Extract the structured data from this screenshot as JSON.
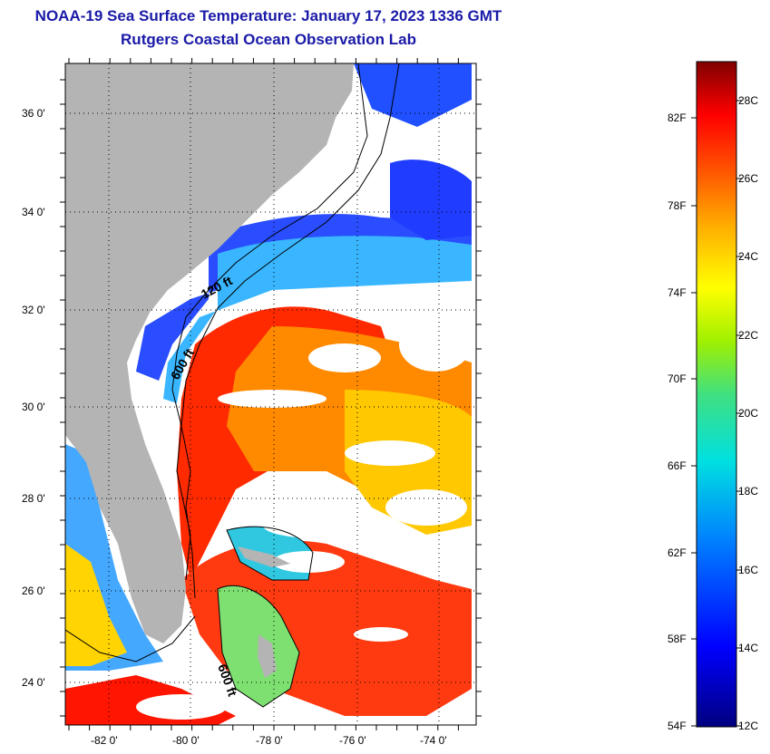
{
  "header": {
    "title": "NOAA-19 Sea Surface Temperature:  January 17, 2023 1336 GMT",
    "subtitle": "Rutgers Coastal Ocean Observation Lab"
  },
  "map": {
    "lat_range": [
      23,
      37.1
    ],
    "lon_range": [
      -83,
      -73
    ],
    "lat_labels": [
      "36 0'",
      "34 0'",
      "32 0'",
      "30 0'",
      "28 0'",
      "26 0'",
      "24 0'"
    ],
    "lon_labels": [
      "-82 0'",
      "-80 0'",
      "-78 0'",
      "-76 0'",
      "-74 0'"
    ],
    "contour_labels": [
      "120 ft",
      "600 ft",
      "600 ft"
    ],
    "colors": {
      "land": "#b4b4b4",
      "cloud": "#ffffff"
    }
  },
  "colorbar": {
    "fahrenheit": [
      "82F",
      "78F",
      "74F",
      "70F",
      "66F",
      "62F",
      "58F",
      "54F"
    ],
    "celsius": [
      "28C",
      "26C",
      "24C",
      "22C",
      "20C",
      "18C",
      "16C",
      "14C",
      "12C"
    ],
    "range_c": [
      12,
      29
    ]
  }
}
